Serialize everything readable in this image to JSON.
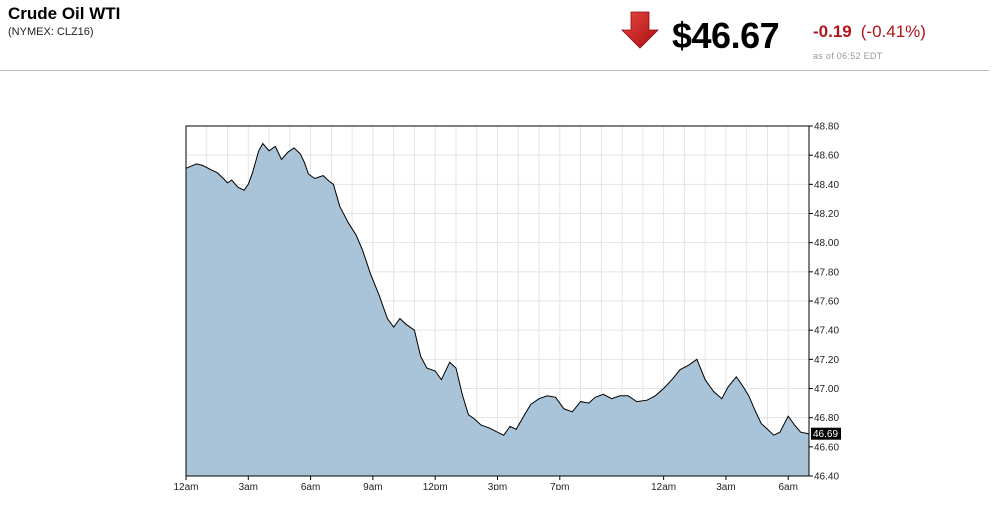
{
  "header": {
    "title": "Crude Oil WTI",
    "subtitle": "(NYMEX: CLZ16)",
    "direction_icon": "down-arrow-icon",
    "price": "$46.67",
    "change": "-0.19",
    "change_pct": "(-0.41%)",
    "as_of": "as of 06:52 EDT"
  },
  "colors": {
    "area_fill": "#a9c4d8",
    "line": "#000000",
    "grid": "#e4e4e4",
    "down": "#b0141c"
  },
  "chart_data": {
    "type": "area",
    "title": "",
    "xlabel": "",
    "ylabel": "",
    "ylim": [
      46.4,
      48.8
    ],
    "yticks": [
      46.4,
      46.6,
      46.8,
      47.0,
      47.2,
      47.4,
      47.6,
      47.8,
      48.0,
      48.2,
      48.4,
      48.6,
      48.8
    ],
    "ytick_labels": [
      "46.40",
      "46.60",
      "46.80",
      "47.00",
      "47.20",
      "47.40",
      "47.60",
      "47.80",
      "48.00",
      "48.20",
      "48.40",
      "48.60",
      "48.80"
    ],
    "y_axis_side": "right",
    "grid": true,
    "legend": "none",
    "xlim": [
      0,
      30
    ],
    "xticks": [
      {
        "x": 0,
        "label": "12am"
      },
      {
        "x": 3,
        "label": "3am"
      },
      {
        "x": 6,
        "label": "6am"
      },
      {
        "x": 9,
        "label": "9am"
      },
      {
        "x": 12,
        "label": "12pm"
      },
      {
        "x": 15,
        "label": "3pm"
      },
      {
        "x": 18,
        "label": "7pm"
      },
      {
        "x": 23,
        "label": "12am"
      },
      {
        "x": 26,
        "label": "3am"
      },
      {
        "x": 29,
        "label": "6am"
      }
    ],
    "last_value_label": "46.69",
    "series": [
      {
        "x": [
          0,
          0.5,
          0.8,
          1.2,
          1.5,
          1.8,
          2.0,
          2.2,
          2.5,
          2.8,
          3.0,
          3.2,
          3.5,
          3.7,
          4.0,
          4.3,
          4.6,
          4.9,
          5.2,
          5.5,
          5.7,
          5.9,
          6.2,
          6.6,
          6.9,
          7.1,
          7.4,
          7.8,
          8.2,
          8.5,
          8.9,
          9.3,
          9.7,
          10.0,
          10.3,
          10.6,
          11.0,
          11.3,
          11.6,
          12.0,
          12.3,
          12.7,
          13.0,
          13.3,
          13.6,
          13.9,
          14.2,
          14.6,
          15.0,
          15.3,
          15.6,
          15.9,
          16.3,
          16.6,
          17.0,
          17.4,
          17.8,
          18.2,
          18.6,
          19.0,
          19.4,
          19.7,
          20.1,
          20.5,
          20.9,
          21.3,
          21.7,
          22.2,
          22.6,
          23.0,
          23.4,
          23.8,
          24.2,
          24.6,
          25.0,
          25.4,
          25.8,
          26.1,
          26.5,
          26.8,
          27.1,
          27.4,
          27.7,
          28.0,
          28.3,
          28.6,
          29.0,
          29.3,
          29.6,
          30.0
        ],
        "y": [
          48.51,
          48.54,
          48.53,
          48.5,
          48.48,
          48.44,
          48.41,
          48.43,
          48.38,
          48.36,
          48.4,
          48.48,
          48.63,
          48.68,
          48.63,
          48.66,
          48.57,
          48.62,
          48.65,
          48.61,
          48.55,
          48.47,
          48.44,
          48.46,
          48.42,
          48.4,
          48.25,
          48.14,
          48.05,
          47.95,
          47.78,
          47.64,
          47.48,
          47.42,
          47.48,
          47.44,
          47.4,
          47.22,
          47.14,
          47.12,
          47.06,
          47.18,
          47.14,
          46.96,
          46.82,
          46.79,
          46.75,
          46.73,
          46.7,
          46.68,
          46.74,
          46.72,
          46.82,
          46.89,
          46.93,
          46.95,
          46.94,
          46.86,
          46.84,
          46.91,
          46.9,
          46.94,
          46.96,
          46.93,
          46.95,
          46.95,
          46.91,
          46.92,
          46.95,
          47.0,
          47.06,
          47.13,
          47.16,
          47.2,
          47.06,
          46.98,
          46.93,
          47.01,
          47.08,
          47.02,
          46.95,
          46.85,
          46.76,
          46.72,
          46.68,
          46.7,
          46.81,
          46.75,
          46.7,
          46.69
        ]
      }
    ]
  }
}
